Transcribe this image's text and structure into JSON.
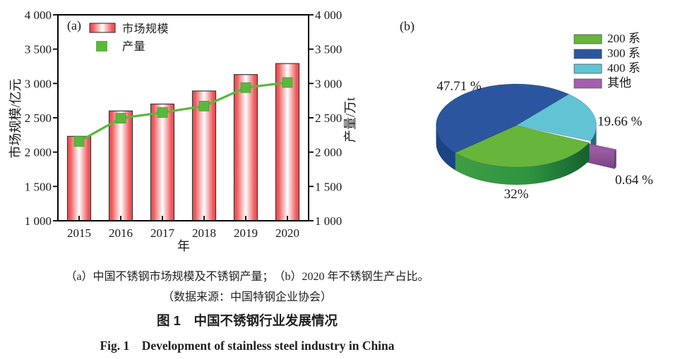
{
  "figure": {
    "caption_line": "（a）中国不锈钢市场规模及不锈钢产量；　（b）2020 年不锈钢生产占比。",
    "source_line": "（数据来源：中国特钢企业协会）",
    "title_zh": "图 1　中国不锈钢行业发展情况",
    "title_en": "Fig. 1　Development of stainless steel industry in China"
  },
  "chart_data": [
    {
      "id": "a",
      "type": "bar",
      "panel_label": "(a)",
      "categories": [
        "2015",
        "2016",
        "2017",
        "2018",
        "2019",
        "2020"
      ],
      "xlabel": "年",
      "ylabel_left": "市场规模/亿元",
      "ylabel_right": "产量/万t",
      "ylim": [
        1000,
        4000
      ],
      "ytick_step": 500,
      "grid": false,
      "legend_position": "inside-top-left",
      "series": [
        {
          "name": "市场规模",
          "type": "bar",
          "axis": "left",
          "unit": "亿元",
          "color": "#ee4a4e",
          "values": [
            2230,
            2600,
            2700,
            2890,
            3130,
            3290
          ]
        },
        {
          "name": "产量",
          "type": "line",
          "axis": "right",
          "unit": "万t",
          "color": "#5cb83c",
          "values": [
            2156,
            2494,
            2577,
            2671,
            2940,
            3014
          ]
        }
      ]
    },
    {
      "id": "b",
      "type": "pie",
      "panel_label": "(b)",
      "legend_position": "top-right",
      "slices": [
        {
          "name": "200系",
          "legend_label": "200 系",
          "value": 32,
          "label": "32%",
          "color": "#67b53b",
          "exploded": false
        },
        {
          "name": "300系",
          "legend_label": "300 系",
          "value": 47.71,
          "label": "47.71 %",
          "color": "#2b569f",
          "exploded": false
        },
        {
          "name": "400系",
          "legend_label": "400 系",
          "value": 19.66,
          "label": "19.66 %",
          "color": "#62c3d5",
          "exploded": false
        },
        {
          "name": "其他",
          "legend_label": "其他",
          "value": 0.64,
          "label": "0.64 %",
          "color": "#a35fad",
          "exploded": true
        }
      ]
    }
  ]
}
